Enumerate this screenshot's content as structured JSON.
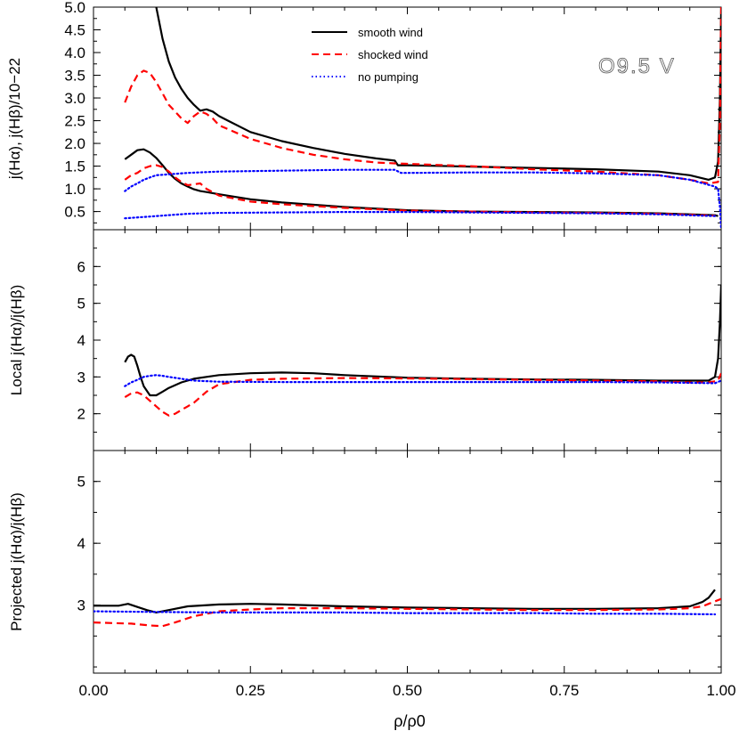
{
  "chart_data": {
    "type": "line",
    "xlabel": "ρ/ρ0",
    "xlim": [
      0.0,
      1.0
    ],
    "x_ticks": [
      "0.00",
      "0.25",
      "0.50",
      "0.75",
      "1.00"
    ],
    "x_tick_values": [
      0.0,
      0.25,
      0.5,
      0.75,
      1.0
    ],
    "grid": false,
    "legend": {
      "placement": "top-center",
      "entries": [
        {
          "label": "smooth wind",
          "color": "#000000",
          "style": "solid"
        },
        {
          "label": "shocked wind",
          "color": "#ff0000",
          "style": "dashed"
        },
        {
          "label": "no pumping",
          "color": "#0000ff",
          "style": "dotted"
        }
      ]
    },
    "panels": [
      {
        "id": "top",
        "ylabel": "j(Hα), j(Hβ)/10−22",
        "ylim": [
          0.1,
          5.0
        ],
        "y_ticks": [
          "0.5",
          "1.0",
          "1.5",
          "2.0",
          "2.5",
          "3.0",
          "3.5",
          "4.0",
          "4.5",
          "5.0"
        ],
        "y_tick_values": [
          0.5,
          1.0,
          1.5,
          2.0,
          2.5,
          3.0,
          3.5,
          4.0,
          4.5,
          5.0
        ],
        "annotation": "O9.5 V",
        "series": [
          {
            "name": "smooth wind",
            "color": "#000000",
            "style": "solid",
            "x": [
              0.1,
              0.11,
              0.12,
              0.13,
              0.14,
              0.15,
              0.16,
              0.17,
              0.18,
              0.19,
              0.2,
              0.25,
              0.3,
              0.35,
              0.4,
              0.45,
              0.48,
              0.485,
              0.5,
              0.6,
              0.7,
              0.8,
              0.9,
              0.95,
              0.98,
              0.99,
              0.995,
              0.998,
              1.0
            ],
            "y": [
              5.0,
              4.3,
              3.8,
              3.45,
              3.2,
              3.0,
              2.85,
              2.72,
              2.75,
              2.7,
              2.6,
              2.25,
              2.05,
              1.9,
              1.77,
              1.67,
              1.62,
              1.52,
              1.52,
              1.49,
              1.46,
              1.43,
              1.38,
              1.3,
              1.2,
              1.25,
              1.6,
              3.0,
              5.0
            ]
          },
          {
            "name": "smooth wind",
            "color": "#000000",
            "style": "solid",
            "x": [
              0.05,
              0.06,
              0.07,
              0.08,
              0.09,
              0.1,
              0.11,
              0.12,
              0.13,
              0.14,
              0.15,
              0.16,
              0.17,
              0.18,
              0.2,
              0.25,
              0.3,
              0.4,
              0.5,
              0.6,
              0.7,
              0.8,
              0.9,
              0.95,
              0.99,
              0.995
            ],
            "y": [
              1.65,
              1.75,
              1.85,
              1.87,
              1.8,
              1.68,
              1.52,
              1.35,
              1.22,
              1.12,
              1.05,
              0.99,
              0.95,
              0.93,
              0.88,
              0.77,
              0.7,
              0.6,
              0.53,
              0.5,
              0.49,
              0.48,
              0.46,
              0.44,
              0.42,
              0.4
            ]
          },
          {
            "name": "shocked wind",
            "color": "#ff0000",
            "style": "dashed",
            "x": [
              0.05,
              0.06,
              0.07,
              0.08,
              0.09,
              0.1,
              0.11,
              0.12,
              0.13,
              0.14,
              0.15,
              0.16,
              0.17,
              0.18,
              0.19,
              0.2,
              0.25,
              0.3,
              0.35,
              0.4,
              0.45,
              0.48,
              0.5,
              0.6,
              0.7,
              0.8,
              0.9,
              0.95,
              0.98,
              0.995,
              0.998,
              1.0
            ],
            "y": [
              2.9,
              3.25,
              3.5,
              3.6,
              3.55,
              3.35,
              3.1,
              2.85,
              2.7,
              2.55,
              2.45,
              2.6,
              2.7,
              2.65,
              2.55,
              2.4,
              2.1,
              1.9,
              1.75,
              1.65,
              1.58,
              1.56,
              1.55,
              1.5,
              1.43,
              1.38,
              1.3,
              1.2,
              1.12,
              1.15,
              2.5,
              5.0
            ]
          },
          {
            "name": "shocked wind",
            "color": "#ff0000",
            "style": "dashed",
            "x": [
              0.05,
              0.06,
              0.07,
              0.08,
              0.09,
              0.1,
              0.11,
              0.12,
              0.13,
              0.14,
              0.15,
              0.16,
              0.17,
              0.18,
              0.2,
              0.25,
              0.3,
              0.4,
              0.5,
              0.6,
              0.7,
              0.8,
              0.9,
              0.95,
              0.99
            ],
            "y": [
              1.2,
              1.3,
              1.35,
              1.45,
              1.5,
              1.52,
              1.48,
              1.38,
              1.25,
              1.15,
              1.08,
              1.1,
              1.12,
              1.0,
              0.85,
              0.72,
              0.66,
              0.58,
              0.52,
              0.5,
              0.48,
              0.47,
              0.45,
              0.43,
              0.41
            ]
          },
          {
            "name": "no pumping",
            "color": "#0000ff",
            "style": "dotted",
            "x": [
              0.05,
              0.06,
              0.07,
              0.08,
              0.09,
              0.1,
              0.12,
              0.15,
              0.2,
              0.3,
              0.4,
              0.48,
              0.49,
              0.5,
              0.6,
              0.7,
              0.8,
              0.9,
              0.95,
              0.99,
              0.995,
              0.998,
              1.0
            ],
            "y": [
              0.95,
              1.05,
              1.12,
              1.2,
              1.25,
              1.3,
              1.32,
              1.35,
              1.38,
              1.4,
              1.42,
              1.42,
              1.35,
              1.35,
              1.36,
              1.36,
              1.34,
              1.3,
              1.2,
              1.05,
              1.0,
              0.6,
              0.1
            ]
          },
          {
            "name": "no pumping",
            "color": "#0000ff",
            "style": "dotted",
            "x": [
              0.05,
              0.1,
              0.15,
              0.2,
              0.3,
              0.4,
              0.5,
              0.6,
              0.7,
              0.8,
              0.9,
              0.99
            ],
            "y": [
              0.35,
              0.4,
              0.45,
              0.47,
              0.48,
              0.49,
              0.49,
              0.48,
              0.47,
              0.46,
              0.44,
              0.4
            ]
          }
        ]
      },
      {
        "id": "middle",
        "ylabel": "Local j(Hα)/j(Hβ)",
        "ylim": [
          1.0,
          7.0
        ],
        "y_ticks": [
          "2",
          "3",
          "4",
          "5",
          "6"
        ],
        "y_tick_values": [
          2,
          3,
          4,
          5,
          6
        ],
        "series": [
          {
            "name": "smooth wind",
            "color": "#000000",
            "style": "solid",
            "x": [
              0.05,
              0.055,
              0.06,
              0.065,
              0.07,
              0.075,
              0.08,
              0.09,
              0.1,
              0.11,
              0.12,
              0.14,
              0.16,
              0.18,
              0.2,
              0.25,
              0.3,
              0.35,
              0.4,
              0.5,
              0.6,
              0.7,
              0.8,
              0.9,
              0.95,
              0.98,
              0.99,
              0.995,
              0.998,
              1.0
            ],
            "y": [
              3.4,
              3.55,
              3.6,
              3.55,
              3.3,
              3.0,
              2.75,
              2.5,
              2.5,
              2.6,
              2.7,
              2.85,
              2.95,
              3.0,
              3.05,
              3.1,
              3.12,
              3.1,
              3.05,
              2.98,
              2.95,
              2.93,
              2.92,
              2.9,
              2.9,
              2.9,
              3.0,
              3.5,
              4.5,
              5.5
            ]
          },
          {
            "name": "shocked wind",
            "color": "#ff0000",
            "style": "dashed",
            "x": [
              0.05,
              0.06,
              0.07,
              0.08,
              0.09,
              0.1,
              0.11,
              0.12,
              0.13,
              0.14,
              0.15,
              0.16,
              0.17,
              0.18,
              0.2,
              0.25,
              0.3,
              0.4,
              0.5,
              0.6,
              0.7,
              0.8,
              0.9,
              0.95,
              0.98,
              0.995,
              1.0
            ],
            "y": [
              2.45,
              2.55,
              2.58,
              2.5,
              2.35,
              2.2,
              2.05,
              1.95,
              2.0,
              2.1,
              2.2,
              2.3,
              2.45,
              2.6,
              2.8,
              2.92,
              2.95,
              2.97,
              2.96,
              2.94,
              2.92,
              2.9,
              2.88,
              2.85,
              2.85,
              2.9,
              3.1
            ]
          },
          {
            "name": "no pumping",
            "color": "#0000ff",
            "style": "dotted",
            "x": [
              0.05,
              0.06,
              0.07,
              0.08,
              0.09,
              0.1,
              0.11,
              0.12,
              0.14,
              0.16,
              0.2,
              0.3,
              0.4,
              0.5,
              0.6,
              0.7,
              0.8,
              0.9,
              0.99,
              1.0
            ],
            "y": [
              2.75,
              2.85,
              2.92,
              3.0,
              3.03,
              3.05,
              3.03,
              3.0,
              2.95,
              2.9,
              2.87,
              2.86,
              2.86,
              2.86,
              2.86,
              2.86,
              2.86,
              2.85,
              2.83,
              2.9
            ]
          }
        ]
      },
      {
        "id": "bottom",
        "ylabel": "Projected j(Hα)/j(Hβ)",
        "ylim": [
          1.9,
          5.5
        ],
        "y_ticks": [
          "3",
          "4",
          "5"
        ],
        "y_tick_values": [
          3,
          4,
          5
        ],
        "series": [
          {
            "name": "smooth wind",
            "color": "#000000",
            "style": "solid",
            "x": [
              0.0,
              0.02,
              0.04,
              0.055,
              0.07,
              0.085,
              0.1,
              0.12,
              0.15,
              0.2,
              0.25,
              0.3,
              0.4,
              0.5,
              0.6,
              0.7,
              0.8,
              0.9,
              0.95,
              0.97,
              0.98,
              0.99
            ],
            "y": [
              2.99,
              2.99,
              2.99,
              3.02,
              2.97,
              2.92,
              2.88,
              2.92,
              2.98,
              3.01,
              3.02,
              3.01,
              2.98,
              2.96,
              2.95,
              2.94,
              2.94,
              2.95,
              2.98,
              3.05,
              3.12,
              3.25
            ]
          },
          {
            "name": "shocked wind",
            "color": "#ff0000",
            "style": "dashed",
            "x": [
              0.0,
              0.03,
              0.06,
              0.09,
              0.11,
              0.13,
              0.16,
              0.2,
              0.25,
              0.3,
              0.4,
              0.5,
              0.6,
              0.7,
              0.8,
              0.9,
              0.95,
              0.97,
              0.98,
              0.99,
              1.0
            ],
            "y": [
              2.72,
              2.71,
              2.7,
              2.67,
              2.66,
              2.72,
              2.82,
              2.9,
              2.93,
              2.95,
              2.95,
              2.94,
              2.93,
              2.92,
              2.92,
              2.93,
              2.95,
              2.98,
              3.02,
              3.06,
              3.1
            ]
          },
          {
            "name": "no pumping",
            "color": "#0000ff",
            "style": "dotted",
            "x": [
              0.0,
              0.1,
              0.2,
              0.3,
              0.4,
              0.5,
              0.6,
              0.7,
              0.8,
              0.9,
              0.99
            ],
            "y": [
              2.9,
              2.89,
              2.88,
              2.88,
              2.88,
              2.87,
              2.87,
              2.87,
              2.86,
              2.86,
              2.85
            ]
          }
        ]
      }
    ]
  }
}
